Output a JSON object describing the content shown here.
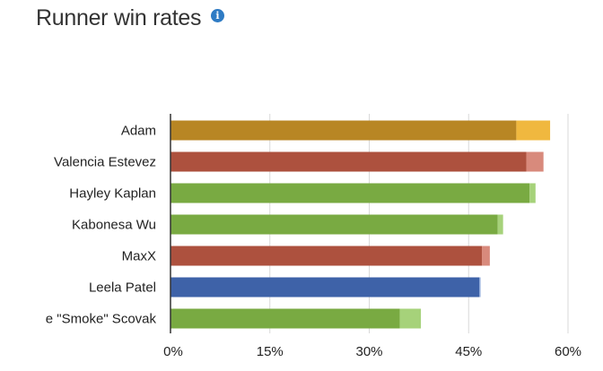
{
  "header": {
    "title": "Runner win rates",
    "info_icon": "info-icon"
  },
  "chart_data": {
    "type": "bar",
    "orientation": "horizontal",
    "stacked": true,
    "categories": [
      "Adam",
      "Valencia Estevez",
      "Hayley Kaplan",
      "Kabonesa Wu",
      "MaxX",
      "Leela Patel",
      "e \"Smoke\" Scovak"
    ],
    "base_values": [
      52.2,
      53.7,
      54.2,
      49.4,
      47.0,
      46.6,
      34.6
    ],
    "extra_values": [
      5.1,
      2.6,
      0.9,
      0.8,
      1.2,
      0.2,
      3.2
    ],
    "base_colors": [
      "#b88624",
      "#ad513e",
      "#79aa42",
      "#79aa42",
      "#ad513e",
      "#3e62a8",
      "#79aa42"
    ],
    "extra_colors": [
      "#f0b83f",
      "#d88a7c",
      "#a6d27a",
      "#a6d27a",
      "#d88a7c",
      "#8aa6d8",
      "#a6d27a"
    ],
    "xlim": [
      0,
      60
    ],
    "xticks": [
      0,
      15,
      30,
      45,
      60
    ],
    "xtick_labels": [
      "0%",
      "15%",
      "30%",
      "45%",
      "60%"
    ],
    "grid": true
  }
}
